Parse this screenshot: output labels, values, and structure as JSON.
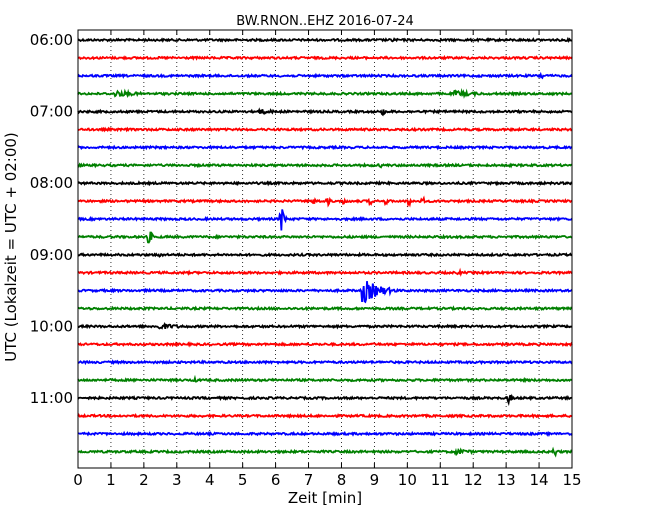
{
  "chart_data": {
    "type": "line",
    "title": "BW.RNON..EHZ 2016-07-24",
    "xlabel": "Zeit  [min]",
    "ylabel": "UTC (Lokalzeit = UTC + 02:00)",
    "xlim": [
      0,
      15
    ],
    "x_ticks": [
      0,
      1,
      2,
      3,
      4,
      5,
      6,
      7,
      8,
      9,
      10,
      11,
      12,
      13,
      14,
      15
    ],
    "y_ticks": [
      "06:00",
      "07:00",
      "08:00",
      "09:00",
      "10:00",
      "11:00"
    ],
    "grid": "vertical dotted",
    "trace_interval_minutes": 15,
    "trace_colors": [
      "#000000",
      "#ff0000",
      "#0000ff",
      "#008000"
    ],
    "traces": [
      {
        "start": "06:00",
        "events": [
          {
            "t": 9.6,
            "amp": 2
          }
        ]
      },
      {
        "start": "06:15",
        "events": []
      },
      {
        "start": "06:30",
        "events": [
          {
            "t": 14.1,
            "amp": 3
          }
        ]
      },
      {
        "start": "06:45",
        "events": [
          {
            "t": 1.2,
            "amp": 3,
            "dur": 1.5
          },
          {
            "t": 11.5,
            "amp": 3,
            "dur": 1.5
          }
        ]
      },
      {
        "start": "07:00",
        "events": [
          {
            "t": 5.5,
            "amp": 3,
            "dur": 1
          },
          {
            "t": 9.3,
            "amp": 3
          }
        ]
      },
      {
        "start": "07:15",
        "events": []
      },
      {
        "start": "07:30",
        "events": []
      },
      {
        "start": "07:45",
        "events": [
          {
            "t": 9.2,
            "amp": 2
          }
        ]
      },
      {
        "start": "08:00",
        "events": []
      },
      {
        "start": "08:15",
        "events": [
          {
            "t": 7.2,
            "amp": 4
          },
          {
            "t": 7.6,
            "amp": 4
          },
          {
            "t": 8.1,
            "amp": 3
          },
          {
            "t": 8.9,
            "amp": 3
          },
          {
            "t": 9.4,
            "amp": 3
          },
          {
            "t": 10.1,
            "amp": 4
          },
          {
            "t": 10.5,
            "amp": 3
          }
        ]
      },
      {
        "start": "08:30",
        "events": [
          {
            "t": 6.2,
            "amp": 12
          }
        ]
      },
      {
        "start": "08:45",
        "events": [
          {
            "t": 2.2,
            "amp": 6
          }
        ]
      },
      {
        "start": "09:00",
        "events": [
          {
            "t": 2.5,
            "amp": 3
          }
        ]
      },
      {
        "start": "09:15",
        "events": [
          {
            "t": 11.6,
            "amp": 2
          }
        ]
      },
      {
        "start": "09:30",
        "events": [
          {
            "t": 8.7,
            "amp": 12,
            "dur": 1
          }
        ]
      },
      {
        "start": "09:45",
        "events": []
      },
      {
        "start": "10:00",
        "events": [
          {
            "t": 2.5,
            "amp": 3,
            "dur": 1.5
          }
        ]
      },
      {
        "start": "10:15",
        "events": []
      },
      {
        "start": "10:30",
        "events": []
      },
      {
        "start": "10:45",
        "events": [
          {
            "t": 3.6,
            "amp": 2
          }
        ]
      },
      {
        "start": "11:00",
        "events": [
          {
            "t": 13.1,
            "amp": 5
          }
        ]
      },
      {
        "start": "11:15",
        "events": []
      },
      {
        "start": "11:30",
        "events": []
      },
      {
        "start": "11:45",
        "events": [
          {
            "t": 11.5,
            "amp": 3,
            "dur": 1
          },
          {
            "t": 14.5,
            "amp": 4
          }
        ]
      }
    ]
  }
}
